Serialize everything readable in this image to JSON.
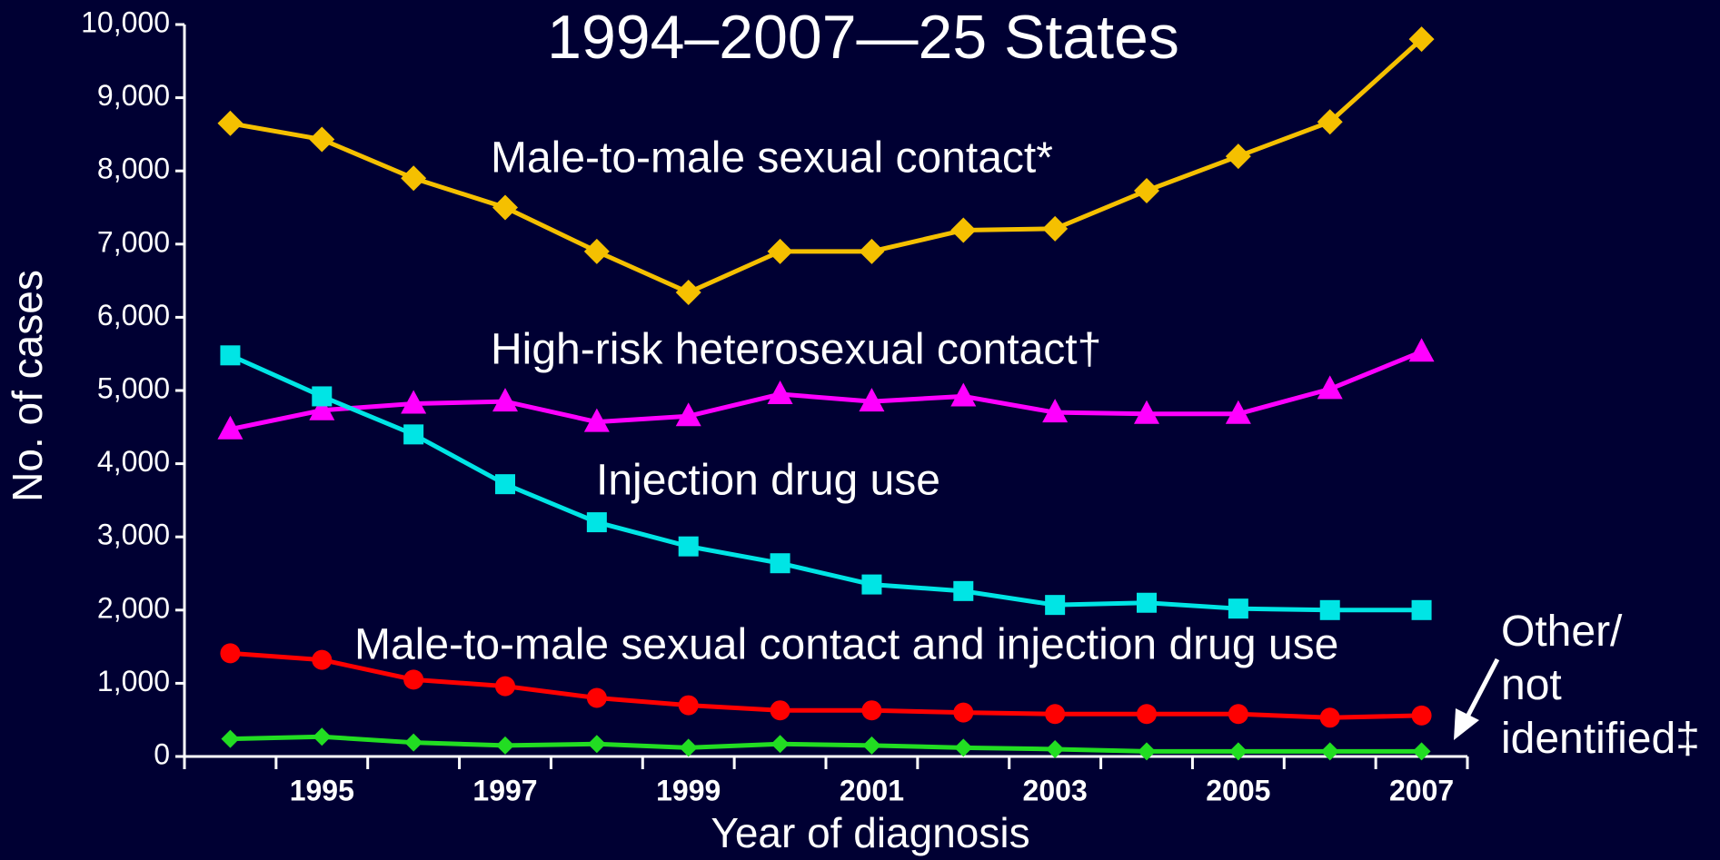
{
  "chart_data": {
    "type": "line",
    "title": "1994–2007—25 States",
    "x_label": "Year of diagnosis",
    "y_label": "No. of cases",
    "categories": [
      null,
      "1995",
      null,
      "1997",
      null,
      "1999",
      null,
      "2001",
      null,
      "2003",
      null,
      "2005",
      null,
      "2007"
    ],
    "ylim": [
      0,
      10000
    ],
    "yticks": [
      0,
      {
        "value": 1000,
        "label": "1,000"
      },
      {
        "value": 2000,
        "label": "2,000"
      },
      {
        "value": 3000,
        "label": "3,000"
      },
      {
        "value": 4000,
        "label": "4,000"
      },
      {
        "value": 5000,
        "label": "5,000"
      },
      {
        "value": 6000,
        "label": "6,000"
      },
      {
        "value": 7000,
        "label": "7,000"
      },
      {
        "value": 8000,
        "label": "8,000"
      },
      {
        "value": 9000,
        "label": "9,000"
      },
      {
        "value": 10000,
        "label": "10,000"
      }
    ],
    "grid": false,
    "series": [
      {
        "name": "Male-to-male sexual contact*",
        "color": "#f5c000",
        "marker": "diamond",
        "values": [
          8650,
          8430,
          7900,
          7500,
          6900,
          6340,
          6900,
          6900,
          7190,
          7210,
          7730,
          8200,
          8670,
          9800
        ]
      },
      {
        "name": "High-risk heterosexual contact†",
        "color": "#ff00ff",
        "marker": "triangle",
        "values": [
          4470,
          4730,
          4820,
          4850,
          4570,
          4650,
          4950,
          4850,
          4920,
          4700,
          4680,
          4680,
          5020,
          5530
        ]
      },
      {
        "name": "Injection drug use",
        "color": "#00e5e5",
        "marker": "square",
        "values": [
          5480,
          4920,
          4400,
          3720,
          3200,
          2870,
          2640,
          2350,
          2260,
          2070,
          2100,
          2020,
          2000,
          2000
        ]
      },
      {
        "name": "Male-to-male sexual contact and injection drug use",
        "color": "#ff0000",
        "marker": "circle",
        "values": [
          1410,
          1320,
          1050,
          960,
          800,
          700,
          630,
          630,
          600,
          580,
          580,
          580,
          530,
          560
        ]
      },
      {
        "name": "Other/ not identified‡",
        "color": "#22dd22",
        "marker": "small-diamond",
        "values": [
          240,
          270,
          190,
          150,
          170,
          120,
          170,
          150,
          120,
          100,
          70,
          70,
          70,
          70
        ]
      }
    ]
  }
}
